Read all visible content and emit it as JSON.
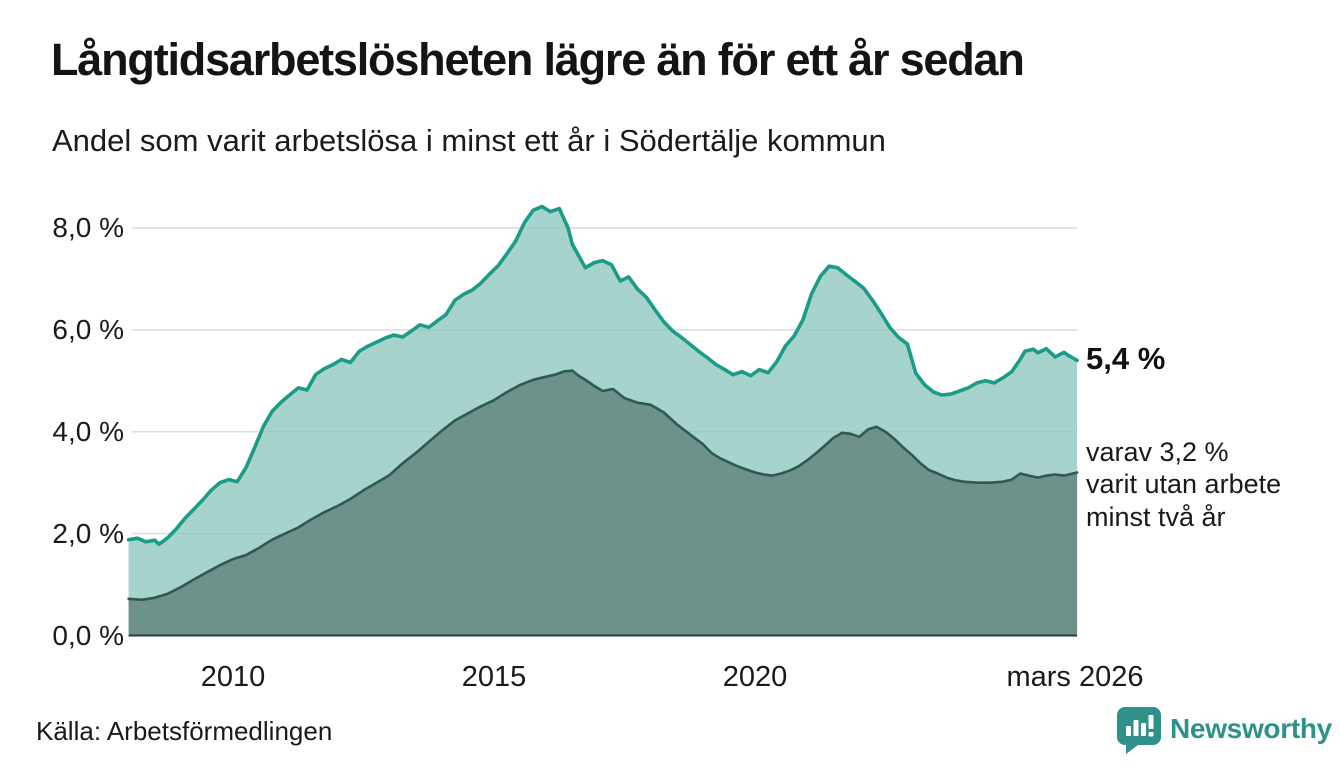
{
  "header": {
    "title": "Långtidsarbetslösheten lägre än för ett år sedan",
    "subtitle": "Andel som varit arbetslösa i minst ett år i Södertälje kommun"
  },
  "chart_data": {
    "type": "area",
    "title": "Långtidsarbetslösheten lägre än för ett år sedan",
    "subtitle": "Andel som varit arbetslösa i minst ett år i Södertälje kommun",
    "x_range": [
      2008.0,
      2026.17
    ],
    "y_range": [
      0,
      8.6
    ],
    "grid": true,
    "legend_position": "none",
    "x_ticks": [
      {
        "label": "2010",
        "year": 2010
      },
      {
        "label": "2015",
        "year": 2015
      },
      {
        "label": "2020",
        "year": 2020
      },
      {
        "label": "mars 2026",
        "year": 2026.17
      }
    ],
    "y_ticks": [
      {
        "label": "8,0 %",
        "value": 8
      },
      {
        "label": "6,0 %",
        "value": 6
      },
      {
        "label": "4,0 %",
        "value": 4
      },
      {
        "label": "2,0 %",
        "value": 2
      },
      {
        "label": "0,0 %",
        "value": 0
      }
    ],
    "colors": {
      "gridline": "#dcdcdc",
      "baseline": "#2c3836",
      "series1_line": "#1b9c88",
      "series1_fill": "rgba(141,199,189,0.78)",
      "series2_line": "#2e5a52",
      "series2_fill": "rgba(93,128,122,0.78)"
    },
    "series": [
      {
        "name": "minst ett år",
        "color": "#1b9c88",
        "fill": "rgba(141,199,189,0.78)",
        "stroke_width": 3.6,
        "points": [
          [
            2008.0,
            1.88
          ],
          [
            2008.17,
            1.91
          ],
          [
            2008.33,
            1.84
          ],
          [
            2008.5,
            1.87
          ],
          [
            2008.58,
            1.79
          ],
          [
            2008.75,
            1.92
          ],
          [
            2008.92,
            2.1
          ],
          [
            2009.08,
            2.3
          ],
          [
            2009.25,
            2.48
          ],
          [
            2009.42,
            2.66
          ],
          [
            2009.58,
            2.85
          ],
          [
            2009.75,
            3.0
          ],
          [
            2009.92,
            3.06
          ],
          [
            2010.08,
            3.02
          ],
          [
            2010.25,
            3.3
          ],
          [
            2010.42,
            3.7
          ],
          [
            2010.58,
            4.1
          ],
          [
            2010.75,
            4.4
          ],
          [
            2010.92,
            4.58
          ],
          [
            2011.08,
            4.72
          ],
          [
            2011.25,
            4.86
          ],
          [
            2011.42,
            4.82
          ],
          [
            2011.58,
            5.12
          ],
          [
            2011.75,
            5.24
          ],
          [
            2011.92,
            5.32
          ],
          [
            2012.08,
            5.42
          ],
          [
            2012.25,
            5.36
          ],
          [
            2012.42,
            5.58
          ],
          [
            2012.58,
            5.68
          ],
          [
            2012.75,
            5.76
          ],
          [
            2012.92,
            5.84
          ],
          [
            2013.08,
            5.9
          ],
          [
            2013.25,
            5.86
          ],
          [
            2013.42,
            5.98
          ],
          [
            2013.58,
            6.1
          ],
          [
            2013.75,
            6.05
          ],
          [
            2013.92,
            6.18
          ],
          [
            2014.08,
            6.3
          ],
          [
            2014.25,
            6.58
          ],
          [
            2014.42,
            6.7
          ],
          [
            2014.58,
            6.78
          ],
          [
            2014.75,
            6.92
          ],
          [
            2014.92,
            7.1
          ],
          [
            2015.08,
            7.26
          ],
          [
            2015.25,
            7.5
          ],
          [
            2015.42,
            7.75
          ],
          [
            2015.58,
            8.1
          ],
          [
            2015.75,
            8.35
          ],
          [
            2015.92,
            8.42
          ],
          [
            2016.08,
            8.32
          ],
          [
            2016.25,
            8.38
          ],
          [
            2016.42,
            8.0
          ],
          [
            2016.5,
            7.68
          ],
          [
            2016.62,
            7.46
          ],
          [
            2016.75,
            7.22
          ],
          [
            2016.92,
            7.32
          ],
          [
            2017.08,
            7.36
          ],
          [
            2017.25,
            7.28
          ],
          [
            2017.42,
            6.96
          ],
          [
            2017.58,
            7.04
          ],
          [
            2017.75,
            6.8
          ],
          [
            2017.92,
            6.64
          ],
          [
            2018.08,
            6.4
          ],
          [
            2018.25,
            6.16
          ],
          [
            2018.42,
            5.98
          ],
          [
            2018.58,
            5.86
          ],
          [
            2018.75,
            5.72
          ],
          [
            2018.92,
            5.58
          ],
          [
            2019.08,
            5.46
          ],
          [
            2019.25,
            5.32
          ],
          [
            2019.42,
            5.22
          ],
          [
            2019.58,
            5.12
          ],
          [
            2019.75,
            5.18
          ],
          [
            2019.92,
            5.1
          ],
          [
            2020.08,
            5.22
          ],
          [
            2020.25,
            5.16
          ],
          [
            2020.42,
            5.38
          ],
          [
            2020.58,
            5.68
          ],
          [
            2020.75,
            5.88
          ],
          [
            2020.92,
            6.2
          ],
          [
            2021.08,
            6.7
          ],
          [
            2021.25,
            7.05
          ],
          [
            2021.42,
            7.25
          ],
          [
            2021.58,
            7.22
          ],
          [
            2021.75,
            7.08
          ],
          [
            2021.92,
            6.95
          ],
          [
            2022.08,
            6.82
          ],
          [
            2022.25,
            6.58
          ],
          [
            2022.42,
            6.32
          ],
          [
            2022.58,
            6.05
          ],
          [
            2022.75,
            5.85
          ],
          [
            2022.92,
            5.72
          ],
          [
            2023.08,
            5.15
          ],
          [
            2023.25,
            4.92
          ],
          [
            2023.42,
            4.78
          ],
          [
            2023.58,
            4.72
          ],
          [
            2023.75,
            4.74
          ],
          [
            2023.92,
            4.8
          ],
          [
            2024.08,
            4.86
          ],
          [
            2024.25,
            4.96
          ],
          [
            2024.42,
            5.0
          ],
          [
            2024.58,
            4.96
          ],
          [
            2024.75,
            5.06
          ],
          [
            2024.92,
            5.18
          ],
          [
            2025.08,
            5.42
          ],
          [
            2025.17,
            5.58
          ],
          [
            2025.33,
            5.62
          ],
          [
            2025.42,
            5.55
          ],
          [
            2025.58,
            5.63
          ],
          [
            2025.75,
            5.47
          ],
          [
            2025.92,
            5.56
          ],
          [
            2026.0,
            5.5
          ],
          [
            2026.17,
            5.4
          ]
        ]
      },
      {
        "name": "minst två år",
        "color": "#2e5a52",
        "fill": "rgba(93,128,122,0.78)",
        "stroke_width": 2.6,
        "points": [
          [
            2008.0,
            0.72
          ],
          [
            2008.25,
            0.7
          ],
          [
            2008.5,
            0.74
          ],
          [
            2008.75,
            0.82
          ],
          [
            2009.0,
            0.95
          ],
          [
            2009.25,
            1.1
          ],
          [
            2009.5,
            1.24
          ],
          [
            2009.75,
            1.38
          ],
          [
            2010.0,
            1.5
          ],
          [
            2010.25,
            1.58
          ],
          [
            2010.5,
            1.72
          ],
          [
            2010.75,
            1.88
          ],
          [
            2011.0,
            2.0
          ],
          [
            2011.25,
            2.12
          ],
          [
            2011.5,
            2.28
          ],
          [
            2011.75,
            2.42
          ],
          [
            2012.0,
            2.54
          ],
          [
            2012.25,
            2.68
          ],
          [
            2012.5,
            2.85
          ],
          [
            2012.75,
            3.0
          ],
          [
            2013.0,
            3.15
          ],
          [
            2013.25,
            3.38
          ],
          [
            2013.5,
            3.58
          ],
          [
            2013.75,
            3.8
          ],
          [
            2014.0,
            4.02
          ],
          [
            2014.25,
            4.22
          ],
          [
            2014.5,
            4.36
          ],
          [
            2014.75,
            4.5
          ],
          [
            2015.0,
            4.62
          ],
          [
            2015.25,
            4.78
          ],
          [
            2015.5,
            4.92
          ],
          [
            2015.75,
            5.02
          ],
          [
            2016.0,
            5.08
          ],
          [
            2016.17,
            5.12
          ],
          [
            2016.33,
            5.18
          ],
          [
            2016.5,
            5.2
          ],
          [
            2016.62,
            5.1
          ],
          [
            2016.75,
            5.02
          ],
          [
            2016.92,
            4.9
          ],
          [
            2017.08,
            4.8
          ],
          [
            2017.28,
            4.84
          ],
          [
            2017.5,
            4.66
          ],
          [
            2017.75,
            4.57
          ],
          [
            2018.0,
            4.53
          ],
          [
            2018.25,
            4.38
          ],
          [
            2018.5,
            4.15
          ],
          [
            2018.75,
            3.95
          ],
          [
            2019.0,
            3.76
          ],
          [
            2019.17,
            3.58
          ],
          [
            2019.33,
            3.48
          ],
          [
            2019.5,
            3.4
          ],
          [
            2019.67,
            3.32
          ],
          [
            2019.83,
            3.26
          ],
          [
            2020.0,
            3.2
          ],
          [
            2020.17,
            3.16
          ],
          [
            2020.33,
            3.14
          ],
          [
            2020.5,
            3.18
          ],
          [
            2020.67,
            3.24
          ],
          [
            2020.83,
            3.32
          ],
          [
            2021.0,
            3.44
          ],
          [
            2021.17,
            3.58
          ],
          [
            2021.33,
            3.72
          ],
          [
            2021.5,
            3.88
          ],
          [
            2021.67,
            3.98
          ],
          [
            2021.83,
            3.96
          ],
          [
            2022.0,
            3.9
          ],
          [
            2022.17,
            4.05
          ],
          [
            2022.33,
            4.1
          ],
          [
            2022.5,
            4.0
          ],
          [
            2022.67,
            3.86
          ],
          [
            2022.83,
            3.7
          ],
          [
            2023.0,
            3.55
          ],
          [
            2023.17,
            3.38
          ],
          [
            2023.33,
            3.25
          ],
          [
            2023.5,
            3.18
          ],
          [
            2023.67,
            3.1
          ],
          [
            2023.83,
            3.05
          ],
          [
            2024.0,
            3.02
          ],
          [
            2024.25,
            3.0
          ],
          [
            2024.5,
            3.0
          ],
          [
            2024.75,
            3.02
          ],
          [
            2024.92,
            3.06
          ],
          [
            2025.08,
            3.18
          ],
          [
            2025.25,
            3.14
          ],
          [
            2025.42,
            3.1
          ],
          [
            2025.58,
            3.14
          ],
          [
            2025.75,
            3.16
          ],
          [
            2025.92,
            3.14
          ],
          [
            2026.17,
            3.2
          ]
        ]
      }
    ],
    "annotations": {
      "end_value": "5,4 %",
      "note_lines": [
        "varav 3,2 %",
        "varit utan arbete",
        "minst två år"
      ]
    }
  },
  "footer": {
    "source": "Källa: Arbetsförmedlingen",
    "brand": "Newsworthy"
  }
}
